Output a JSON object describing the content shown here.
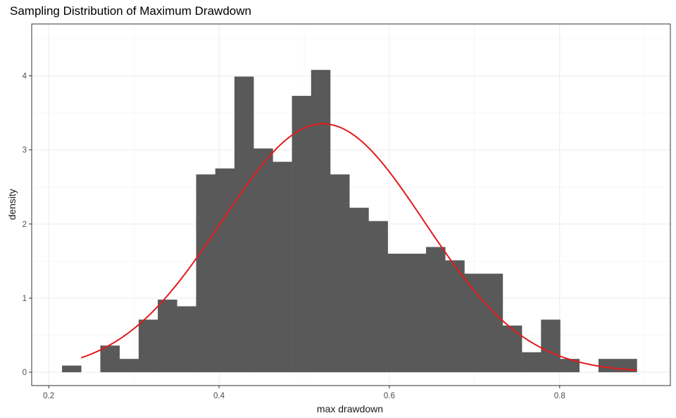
{
  "chart_data": {
    "type": "bar",
    "title": "Sampling Distribution of Maximum Drawdown",
    "xlabel": "max drawdown",
    "ylabel": "density",
    "xlim": [
      0.18,
      0.93
    ],
    "ylim": [
      -0.18,
      4.7
    ],
    "x_ticks": [
      0.2,
      0.4,
      0.6,
      0.8
    ],
    "x_tick_labels": [
      "0.2",
      "0.4",
      "0.6",
      "0.8"
    ],
    "y_ticks": [
      0,
      1,
      2,
      3,
      4
    ],
    "y_tick_labels": [
      "0",
      "1",
      "2",
      "3",
      "4"
    ],
    "grid": true,
    "bar_color": "#595959",
    "curve_color": "#e31a1c",
    "bin_width": 0.0225,
    "bins": [
      {
        "x0": 0.2156,
        "value": 0.09
      },
      {
        "x0": 0.2381,
        "value": 0.0
      },
      {
        "x0": 0.2606,
        "value": 0.36
      },
      {
        "x0": 0.2831,
        "value": 0.18
      },
      {
        "x0": 0.3056,
        "value": 0.71
      },
      {
        "x0": 0.3281,
        "value": 0.98
      },
      {
        "x0": 0.3506,
        "value": 0.89
      },
      {
        "x0": 0.3731,
        "value": 2.67
      },
      {
        "x0": 0.3956,
        "value": 2.75
      },
      {
        "x0": 0.4181,
        "value": 3.99
      },
      {
        "x0": 0.4406,
        "value": 3.02
      },
      {
        "x0": 0.4631,
        "value": 2.84
      },
      {
        "x0": 0.4856,
        "value": 3.73
      },
      {
        "x0": 0.5081,
        "value": 4.08
      },
      {
        "x0": 0.5306,
        "value": 2.67
      },
      {
        "x0": 0.5531,
        "value": 2.22
      },
      {
        "x0": 0.5756,
        "value": 2.04
      },
      {
        "x0": 0.5981,
        "value": 1.6
      },
      {
        "x0": 0.6206,
        "value": 1.6
      },
      {
        "x0": 0.6431,
        "value": 1.69
      },
      {
        "x0": 0.6656,
        "value": 1.51
      },
      {
        "x0": 0.6881,
        "value": 1.33
      },
      {
        "x0": 0.7106,
        "value": 1.33
      },
      {
        "x0": 0.7331,
        "value": 0.63
      },
      {
        "x0": 0.7556,
        "value": 0.27
      },
      {
        "x0": 0.7781,
        "value": 0.71
      },
      {
        "x0": 0.8006,
        "value": 0.18
      },
      {
        "x0": 0.8231,
        "value": 0.0
      },
      {
        "x0": 0.8456,
        "value": 0.18
      },
      {
        "x0": 0.8681,
        "value": 0.18
      }
    ],
    "normal_curve": {
      "mean": 0.522,
      "sd": 0.119,
      "x_min": 0.2381,
      "x_max": 0.8906
    }
  }
}
